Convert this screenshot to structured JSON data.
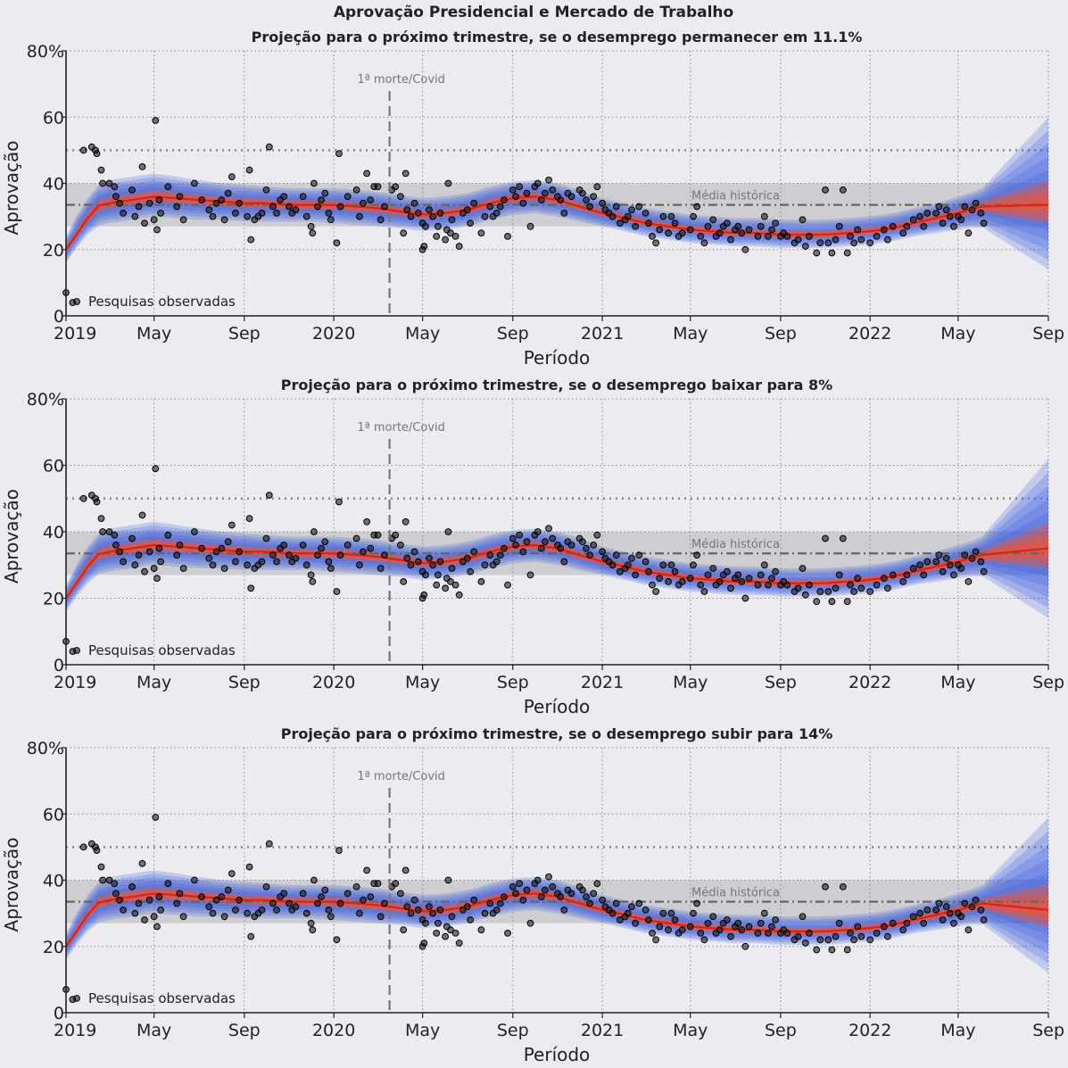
{
  "figure": {
    "suptitle": "Aprovação Presidencial e Mercado de Trabalho"
  },
  "chart_data": [
    {
      "type": "line",
      "title": "Projeção para o próximo trimestre, se o desemprego permanecer em 11.1%",
      "scenario_unemployment": 11.1,
      "xlabel": "Período",
      "ylabel": "Aprovação",
      "xlim": [
        "2019-01-01",
        "2022-09-01"
      ],
      "ylim": [
        0,
        80
      ],
      "yticks": [
        0,
        20,
        40,
        60,
        80
      ],
      "ytick_labels": [
        "0",
        "20",
        "40",
        "60",
        "80%"
      ],
      "xticks": [
        "2019-01-01",
        "2019-05-01",
        "2019-09-01",
        "2020-01-01",
        "2020-05-01",
        "2020-09-01",
        "2021-01-01",
        "2021-05-01",
        "2021-09-01",
        "2022-01-01",
        "2022-05-01",
        "2022-09-01"
      ],
      "xtick_labels": [
        "2019",
        "May",
        "Sep",
        "2020",
        "May",
        "Sep",
        "2021",
        "May",
        "Sep",
        "2022",
        "May",
        "Sep"
      ],
      "grid": true,
      "reference_lines": {
        "upper_dotted": 50,
        "historical_mean": 33.5
      },
      "historical_band": {
        "low": 27,
        "high": 40,
        "label": "Média histórica"
      },
      "event_marker": {
        "date": "2020-03-17",
        "label": "1ª morte/Covid"
      },
      "legend": {
        "label": "Pesquisas observadas",
        "position": "lower-left"
      },
      "projection_end": {
        "date": "2022-09-01",
        "mean": 33.5,
        "low": 14,
        "high": 60
      }
    },
    {
      "type": "line",
      "title": "Projeção para o próximo trimestre, se o desemprego baixar para 8%",
      "scenario_unemployment": 8,
      "xlabel": "Período",
      "ylabel": "Aprovação",
      "xlim": [
        "2019-01-01",
        "2022-09-01"
      ],
      "ylim": [
        0,
        80
      ],
      "yticks": [
        0,
        20,
        40,
        60,
        80
      ],
      "ytick_labels": [
        "0",
        "20",
        "40",
        "60",
        "80%"
      ],
      "xticks": [
        "2019-01-01",
        "2019-05-01",
        "2019-09-01",
        "2020-01-01",
        "2020-05-01",
        "2020-09-01",
        "2021-01-01",
        "2021-05-01",
        "2021-09-01",
        "2022-01-01",
        "2022-05-01",
        "2022-09-01"
      ],
      "xtick_labels": [
        "2019",
        "May",
        "Sep",
        "2020",
        "May",
        "Sep",
        "2021",
        "May",
        "Sep",
        "2022",
        "May",
        "Sep"
      ],
      "grid": true,
      "reference_lines": {
        "upper_dotted": 50,
        "historical_mean": 33.5
      },
      "historical_band": {
        "low": 27,
        "high": 40,
        "label": "Média histórica"
      },
      "event_marker": {
        "date": "2020-03-17",
        "label": "1ª morte/Covid"
      },
      "legend": {
        "label": "Pesquisas observadas",
        "position": "lower-left"
      },
      "projection_end": {
        "date": "2022-09-01",
        "mean": 35,
        "low": 14,
        "high": 62
      }
    },
    {
      "type": "line",
      "title": "Projeção para o próximo trimestre, se o desemprego subir para 14%",
      "scenario_unemployment": 14,
      "xlabel": "Período",
      "ylabel": "Aprovação",
      "xlim": [
        "2019-01-01",
        "2022-09-01"
      ],
      "ylim": [
        0,
        80
      ],
      "yticks": [
        0,
        20,
        40,
        60,
        80
      ],
      "ytick_labels": [
        "0",
        "20",
        "40",
        "60",
        "80%"
      ],
      "xticks": [
        "2019-01-01",
        "2019-05-01",
        "2019-09-01",
        "2020-01-01",
        "2020-05-01",
        "2020-09-01",
        "2021-01-01",
        "2021-05-01",
        "2021-09-01",
        "2022-01-01",
        "2022-05-01",
        "2022-09-01"
      ],
      "xtick_labels": [
        "2019",
        "May",
        "Sep",
        "2020",
        "May",
        "Sep",
        "2021",
        "May",
        "Sep",
        "2022",
        "May",
        "Sep"
      ],
      "grid": true,
      "reference_lines": {
        "upper_dotted": 50,
        "historical_mean": 33.5
      },
      "historical_band": {
        "low": 27,
        "high": 40,
        "label": "Média histórica"
      },
      "event_marker": {
        "date": "2020-03-17",
        "label": "1ª morte/Covid"
      },
      "legend": {
        "label": "Pesquisas observadas",
        "position": "lower-left"
      },
      "projection_end": {
        "date": "2022-09-01",
        "mean": 31,
        "low": 12,
        "high": 59
      }
    }
  ],
  "trend_estimate": {
    "dates": [
      "2019-01-01",
      "2019-01-20",
      "2019-02-10",
      "2019-03-01",
      "2019-04-01",
      "2019-05-01",
      "2019-06-01",
      "2019-07-01",
      "2019-08-01",
      "2019-09-01",
      "2019-10-01",
      "2019-11-01",
      "2019-12-01",
      "2020-01-01",
      "2020-02-01",
      "2020-03-01",
      "2020-04-01",
      "2020-05-01",
      "2020-06-01",
      "2020-07-01",
      "2020-08-01",
      "2020-09-01",
      "2020-10-01",
      "2020-11-01",
      "2020-12-01",
      "2021-01-01",
      "2021-02-01",
      "2021-03-01",
      "2021-04-01",
      "2021-05-01",
      "2021-06-01",
      "2021-07-01",
      "2021-08-01",
      "2021-09-01",
      "2021-10-01",
      "2021-11-01",
      "2021-12-01",
      "2022-01-01",
      "2022-02-01",
      "2022-03-01",
      "2022-04-01",
      "2022-05-01",
      "2022-06-01"
    ],
    "mean": [
      20,
      26,
      33,
      34,
      35,
      36,
      35.5,
      35,
      34.5,
      34,
      34,
      33.5,
      33.5,
      33.5,
      33,
      32.5,
      31.5,
      30.5,
      31,
      32,
      34,
      35.5,
      36,
      35,
      33,
      31,
      29.5,
      28,
      27,
      26,
      25.5,
      25,
      25,
      24.5,
      24.5,
      24.5,
      25,
      25.5,
      26.5,
      28,
      29.5,
      31,
      33
    ],
    "low": [
      16,
      22,
      27,
      28,
      29,
      30,
      29.5,
      29,
      29,
      28.5,
      28.5,
      28.5,
      28.5,
      28,
      27.5,
      27,
      26.5,
      25.5,
      26,
      27,
      29,
      30.5,
      31,
      30,
      28.5,
      27,
      25.5,
      24,
      23,
      22,
      21.5,
      21,
      21,
      20.5,
      20.5,
      20.5,
      21,
      21.5,
      22.5,
      24,
      25,
      26,
      27
    ],
    "high": [
      24,
      32,
      39,
      41,
      42,
      43,
      42,
      41,
      40,
      39.5,
      39,
      38.5,
      38.5,
      38.5,
      38,
      37.5,
      36.5,
      35.5,
      36,
      37,
      39,
      40.5,
      41,
      40,
      38,
      35.5,
      34,
      32.5,
      31.5,
      30.5,
      30,
      29.5,
      29.5,
      29,
      29,
      29,
      29.5,
      30,
      31,
      32.5,
      34,
      36,
      38
    ]
  },
  "polls": [
    [
      "2019-01-01",
      7
    ],
    [
      "2019-01-10",
      4
    ],
    [
      "2019-01-25",
      50
    ],
    [
      "2019-02-05",
      51
    ],
    [
      "2019-02-10",
      50
    ],
    [
      "2019-02-12",
      49
    ],
    [
      "2019-02-18",
      44
    ],
    [
      "2019-02-20",
      40
    ],
    [
      "2019-03-01",
      40
    ],
    [
      "2019-03-08",
      39
    ],
    [
      "2019-03-10",
      36
    ],
    [
      "2019-03-15",
      34
    ],
    [
      "2019-03-20",
      31
    ],
    [
      "2019-04-01",
      38
    ],
    [
      "2019-04-05",
      30
    ],
    [
      "2019-04-10",
      33
    ],
    [
      "2019-04-15",
      45
    ],
    [
      "2019-04-18",
      28
    ],
    [
      "2019-04-25",
      34
    ],
    [
      "2019-05-01",
      29
    ],
    [
      "2019-05-03",
      59
    ],
    [
      "2019-05-05",
      26
    ],
    [
      "2019-05-08",
      35
    ],
    [
      "2019-05-10",
      31
    ],
    [
      "2019-05-20",
      39
    ],
    [
      "2019-06-01",
      33
    ],
    [
      "2019-06-05",
      36
    ],
    [
      "2019-06-10",
      29
    ],
    [
      "2019-06-25",
      40
    ],
    [
      "2019-07-05",
      35
    ],
    [
      "2019-07-15",
      32
    ],
    [
      "2019-07-20",
      30
    ],
    [
      "2019-07-25",
      34
    ],
    [
      "2019-08-01",
      35
    ],
    [
      "2019-08-05",
      29
    ],
    [
      "2019-08-10",
      37
    ],
    [
      "2019-08-15",
      42
    ],
    [
      "2019-08-20",
      31
    ],
    [
      "2019-08-25",
      34
    ],
    [
      "2019-09-05",
      30
    ],
    [
      "2019-09-08",
      44
    ],
    [
      "2019-09-10",
      23
    ],
    [
      "2019-09-15",
      29
    ],
    [
      "2019-09-20",
      30
    ],
    [
      "2019-09-25",
      31
    ],
    [
      "2019-10-01",
      38
    ],
    [
      "2019-10-05",
      51
    ],
    [
      "2019-10-10",
      33
    ],
    [
      "2019-10-15",
      31
    ],
    [
      "2019-10-20",
      35
    ],
    [
      "2019-10-25",
      36
    ],
    [
      "2019-11-01",
      33
    ],
    [
      "2019-11-05",
      31
    ],
    [
      "2019-11-10",
      32
    ],
    [
      "2019-11-20",
      36
    ],
    [
      "2019-11-25",
      30
    ],
    [
      "2019-12-01",
      27
    ],
    [
      "2019-12-03",
      25
    ],
    [
      "2019-12-05",
      40
    ],
    [
      "2019-12-10",
      33
    ],
    [
      "2019-12-15",
      35
    ],
    [
      "2019-12-20",
      37
    ],
    [
      "2019-12-25",
      31
    ],
    [
      "2019-12-28",
      29
    ],
    [
      "2020-01-05",
      22
    ],
    [
      "2020-01-08",
      49
    ],
    [
      "2020-01-10",
      33
    ],
    [
      "2020-01-20",
      36
    ],
    [
      "2020-02-01",
      38
    ],
    [
      "2020-02-05",
      30
    ],
    [
      "2020-02-10",
      34
    ],
    [
      "2020-02-15",
      43
    ],
    [
      "2020-02-20",
      35
    ],
    [
      "2020-02-25",
      39
    ],
    [
      "2020-03-01",
      39
    ],
    [
      "2020-03-05",
      29
    ],
    [
      "2020-03-10",
      33
    ],
    [
      "2020-03-20",
      38
    ],
    [
      "2020-03-25",
      39
    ],
    [
      "2020-04-01",
      36
    ],
    [
      "2020-04-05",
      25
    ],
    [
      "2020-04-08",
      43
    ],
    [
      "2020-04-10",
      32
    ],
    [
      "2020-04-15",
      30
    ],
    [
      "2020-04-20",
      34
    ],
    [
      "2020-04-25",
      31
    ],
    [
      "2020-05-01",
      28
    ],
    [
      "2020-05-01",
      20
    ],
    [
      "2020-05-03",
      21
    ],
    [
      "2020-05-05",
      27
    ],
    [
      "2020-05-10",
      32
    ],
    [
      "2020-05-15",
      30
    ],
    [
      "2020-05-20",
      24
    ],
    [
      "2020-05-22",
      27
    ],
    [
      "2020-05-25",
      31
    ],
    [
      "2020-06-01",
      23
    ],
    [
      "2020-06-03",
      26
    ],
    [
      "2020-06-05",
      40
    ],
    [
      "2020-06-08",
      25
    ],
    [
      "2020-06-10",
      29
    ],
    [
      "2020-06-15",
      24
    ],
    [
      "2020-06-20",
      21
    ],
    [
      "2020-06-25",
      31
    ],
    [
      "2020-07-01",
      32
    ],
    [
      "2020-07-05",
      28
    ],
    [
      "2020-07-10",
      34
    ],
    [
      "2020-07-20",
      25
    ],
    [
      "2020-07-25",
      30
    ],
    [
      "2020-08-01",
      33
    ],
    [
      "2020-08-05",
      30
    ],
    [
      "2020-08-10",
      31
    ],
    [
      "2020-08-15",
      33
    ],
    [
      "2020-08-20",
      35
    ],
    [
      "2020-08-25",
      24
    ],
    [
      "2020-09-01",
      38
    ],
    [
      "2020-09-05",
      36
    ],
    [
      "2020-09-10",
      39
    ],
    [
      "2020-09-15",
      34
    ],
    [
      "2020-09-20",
      37
    ],
    [
      "2020-09-25",
      27
    ],
    [
      "2020-10-01",
      39
    ],
    [
      "2020-10-05",
      40
    ],
    [
      "2020-10-10",
      35
    ],
    [
      "2020-10-15",
      37
    ],
    [
      "2020-10-20",
      41
    ],
    [
      "2020-10-25",
      38
    ],
    [
      "2020-11-01",
      36
    ],
    [
      "2020-11-05",
      35
    ],
    [
      "2020-11-10",
      31
    ],
    [
      "2020-11-15",
      37
    ],
    [
      "2020-11-20",
      36
    ],
    [
      "2020-12-01",
      38
    ],
    [
      "2020-12-05",
      37
    ],
    [
      "2020-12-10",
      35
    ],
    [
      "2020-12-15",
      33
    ],
    [
      "2020-12-20",
      36
    ],
    [
      "2020-12-25",
      39
    ],
    [
      "2021-01-01",
      34
    ],
    [
      "2021-01-05",
      32
    ],
    [
      "2021-01-10",
      31
    ],
    [
      "2021-01-15",
      30
    ],
    [
      "2021-01-20",
      33
    ],
    [
      "2021-01-25",
      28
    ],
    [
      "2021-02-01",
      29
    ],
    [
      "2021-02-05",
      30
    ],
    [
      "2021-02-10",
      32
    ],
    [
      "2021-02-15",
      27
    ],
    [
      "2021-02-20",
      33
    ],
    [
      "2021-03-01",
      31
    ],
    [
      "2021-03-05",
      28
    ],
    [
      "2021-03-10",
      24
    ],
    [
      "2021-03-15",
      22
    ],
    [
      "2021-03-20",
      26
    ],
    [
      "2021-03-25",
      30
    ],
    [
      "2021-04-01",
      25
    ],
    [
      "2021-04-05",
      30
    ],
    [
      "2021-04-10",
      28
    ],
    [
      "2021-04-15",
      24
    ],
    [
      "2021-04-20",
      25
    ],
    [
      "2021-05-01",
      26
    ],
    [
      "2021-05-05",
      30
    ],
    [
      "2021-05-10",
      33
    ],
    [
      "2021-05-15",
      24
    ],
    [
      "2021-05-20",
      22
    ],
    [
      "2021-05-25",
      27
    ],
    [
      "2021-06-01",
      29
    ],
    [
      "2021-06-05",
      24
    ],
    [
      "2021-06-10",
      25
    ],
    [
      "2021-06-15",
      27
    ],
    [
      "2021-06-20",
      28
    ],
    [
      "2021-06-25",
      23
    ],
    [
      "2021-07-01",
      26
    ],
    [
      "2021-07-05",
      27
    ],
    [
      "2021-07-10",
      25
    ],
    [
      "2021-07-15",
      20
    ],
    [
      "2021-07-20",
      26
    ],
    [
      "2021-08-01",
      24
    ],
    [
      "2021-08-05",
      27
    ],
    [
      "2021-08-10",
      30
    ],
    [
      "2021-08-15",
      24
    ],
    [
      "2021-08-20",
      26
    ],
    [
      "2021-08-25",
      28
    ],
    [
      "2021-09-01",
      24
    ],
    [
      "2021-09-05",
      25
    ],
    [
      "2021-09-10",
      24
    ],
    [
      "2021-09-20",
      22
    ],
    [
      "2021-09-25",
      23
    ],
    [
      "2021-10-01",
      29
    ],
    [
      "2021-10-05",
      21
    ],
    [
      "2021-10-10",
      24
    ],
    [
      "2021-10-20",
      19
    ],
    [
      "2021-10-25",
      22
    ],
    [
      "2021-11-01",
      38
    ],
    [
      "2021-11-05",
      22
    ],
    [
      "2021-11-10",
      19
    ],
    [
      "2021-11-15",
      23
    ],
    [
      "2021-11-20",
      27
    ],
    [
      "2021-11-25",
      38
    ],
    [
      "2021-12-01",
      19
    ],
    [
      "2021-12-05",
      24
    ],
    [
      "2021-12-10",
      22
    ],
    [
      "2021-12-15",
      26
    ],
    [
      "2021-12-20",
      23
    ],
    [
      "2022-01-01",
      22
    ],
    [
      "2022-01-10",
      24
    ],
    [
      "2022-01-20",
      26
    ],
    [
      "2022-01-25",
      23
    ],
    [
      "2022-02-01",
      27
    ],
    [
      "2022-02-15",
      25
    ],
    [
      "2022-02-20",
      27
    ],
    [
      "2022-03-01",
      29
    ],
    [
      "2022-03-10",
      30
    ],
    [
      "2022-03-15",
      27
    ],
    [
      "2022-03-20",
      31
    ],
    [
      "2022-04-01",
      31
    ],
    [
      "2022-04-05",
      33
    ],
    [
      "2022-04-10",
      28
    ],
    [
      "2022-04-15",
      32
    ],
    [
      "2022-04-20",
      30
    ],
    [
      "2022-04-25",
      27
    ],
    [
      "2022-05-01",
      30
    ],
    [
      "2022-05-05",
      29
    ],
    [
      "2022-05-10",
      33
    ],
    [
      "2022-05-15",
      25
    ],
    [
      "2022-05-20",
      32
    ],
    [
      "2022-05-25",
      34
    ],
    [
      "2022-06-01",
      31
    ],
    [
      "2022-06-05",
      28
    ]
  ],
  "colors": {
    "background": "#ebebf0",
    "trend_line": "#dd2211",
    "fan_blue": "#3355dd",
    "fan_red": "#ee5533",
    "historical_band": "#c8c8cc",
    "grid": "#8a8a8a",
    "poll_marker": "#111111"
  }
}
